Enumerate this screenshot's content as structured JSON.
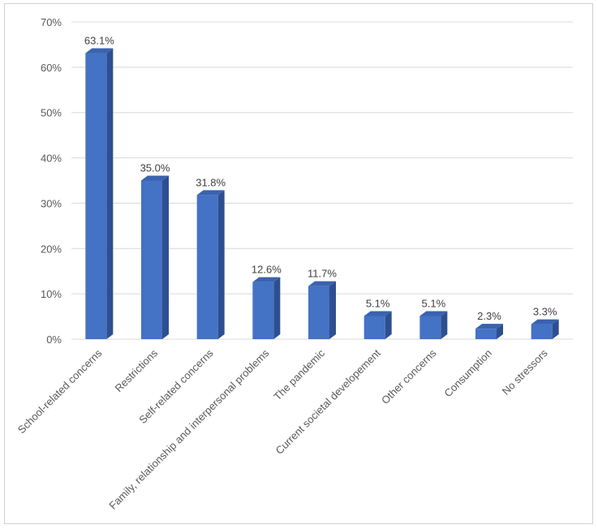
{
  "chart_data": {
    "type": "bar",
    "title": "",
    "xlabel": "",
    "ylabel": "",
    "ylim": [
      0,
      70
    ],
    "y_tick_step": 10,
    "y_tick_format": "percent",
    "grid": true,
    "three_d": true,
    "bar_color": "#4472c4",
    "categories": [
      "School-related concerns",
      "Restrictions",
      "Self-related concerns",
      "Family, relationship and interpersonal problems",
      "The pandemic",
      "Current societal developement",
      "Other concerns",
      "Consumption",
      "No stressors"
    ],
    "values": [
      63.1,
      35.0,
      31.8,
      12.6,
      11.7,
      5.1,
      5.1,
      2.3,
      3.3
    ],
    "data_labels": [
      "63.1%",
      "35.0%",
      "31.8%",
      "12.6%",
      "11.7%",
      "5.1%",
      "5.1%",
      "2.3%",
      "3.3%"
    ],
    "y_tick_labels": [
      "0%",
      "10%",
      "20%",
      "30%",
      "40%",
      "50%",
      "60%",
      "70%"
    ]
  }
}
